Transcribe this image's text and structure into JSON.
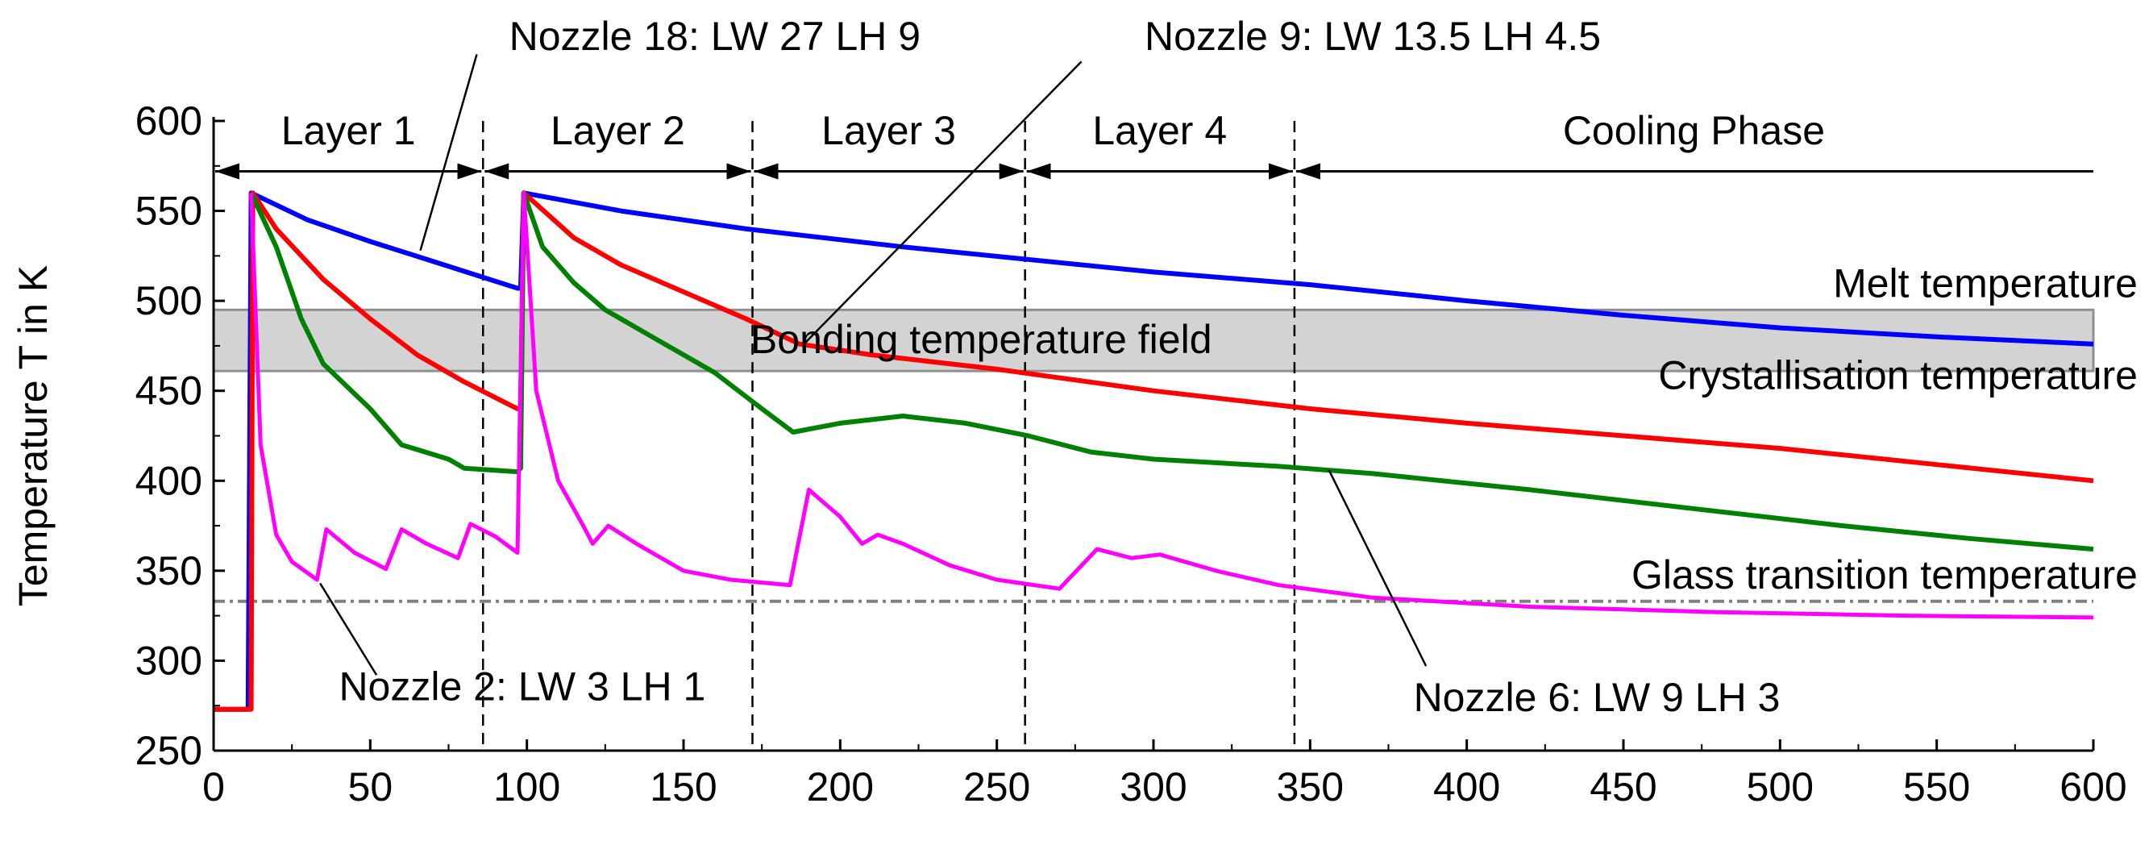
{
  "chart_data": {
    "type": "line",
    "title": "",
    "xlabel": "",
    "ylabel": "Temperature T in K",
    "xlim": [
      0,
      600
    ],
    "ylim": [
      250,
      600
    ],
    "xticks": [
      "0",
      "50",
      "100",
      "150",
      "200",
      "250",
      "300",
      "350",
      "400",
      "450",
      "500",
      "550",
      "600"
    ],
    "yticks": [
      "250",
      "300",
      "350",
      "400",
      "450",
      "500",
      "550",
      "600"
    ],
    "grid": false,
    "series": [
      {
        "name": "Nozzle 18: LW 27 LH 9",
        "color": "#0000ff",
        "x": [
          0,
          11,
          12,
          30,
          50,
          70,
          97,
          98,
          99,
          130,
          170,
          220,
          260,
          300,
          350,
          400,
          450,
          500,
          550,
          600
        ],
        "y": [
          273,
          273,
          560,
          545,
          533,
          522,
          507,
          507,
          560,
          550,
          540,
          530,
          523,
          516,
          509,
          500,
          492,
          485,
          480,
          476
        ]
      },
      {
        "name": "Nozzle 9: LW 13.5 LH 4.5",
        "color": "#ff0000",
        "x": [
          0,
          12,
          12.5,
          20,
          35,
          50,
          65,
          80,
          97,
          98,
          99,
          115,
          130,
          150,
          170,
          187,
          210,
          250,
          300,
          350,
          400,
          450,
          500,
          550,
          600
        ],
        "y": [
          273,
          273,
          560,
          540,
          512,
          490,
          470,
          455,
          440,
          440,
          560,
          535,
          520,
          505,
          490,
          476,
          470,
          462,
          450,
          440,
          432,
          425,
          418,
          409,
          400
        ]
      },
      {
        "name": "Nozzle 6: LW 9 LH 3",
        "color": "#008000",
        "x": [
          12,
          20,
          28,
          35,
          50,
          60,
          75,
          80,
          97,
          98,
          99,
          105,
          115,
          125,
          140,
          160,
          175,
          185,
          200,
          220,
          240,
          260,
          280,
          300,
          340,
          370,
          420,
          470,
          520,
          560,
          600
        ],
        "y": [
          560,
          530,
          490,
          465,
          440,
          420,
          412,
          407,
          405,
          407,
          560,
          530,
          510,
          495,
          480,
          460,
          440,
          427,
          432,
          436,
          432,
          425,
          416,
          412,
          408,
          404,
          395,
          385,
          375,
          368,
          362
        ]
      },
      {
        "name": "Nozzle 2: LW 3 LH 1",
        "color": "#ff00ff",
        "x": [
          12,
          15,
          20,
          25,
          33,
          36,
          45,
          55,
          60,
          68,
          78,
          82,
          90,
          97,
          99,
          103,
          110,
          118,
          121,
          126,
          135,
          150,
          165,
          184,
          190,
          200,
          207,
          212,
          220,
          235,
          250,
          270,
          282,
          293,
          302,
          320,
          340,
          370,
          420,
          480,
          540,
          600
        ],
        "y": [
          560,
          420,
          370,
          355,
          345,
          373,
          360,
          351,
          373,
          365,
          357,
          376,
          369,
          360,
          560,
          450,
          400,
          375,
          365,
          375,
          365,
          350,
          345,
          342,
          395,
          380,
          365,
          370,
          365,
          353,
          345,
          340,
          362,
          357,
          359,
          350,
          342,
          335,
          330,
          327,
          325,
          324
        ]
      }
    ],
    "reference_lines": {
      "glass_transition": {
        "label": "Glass transition temperature",
        "y": 333,
        "color": "#808080"
      },
      "bonding_field": {
        "label": "Bonding temperature field",
        "y_range": [
          461,
          495
        ],
        "color": "#d3d3d3"
      },
      "melt_label": "Melt temperature",
      "crystallisation_label": "Crystallisation temperature"
    },
    "phases": [
      {
        "label": "Layer 1",
        "start": 0,
        "end": 86
      },
      {
        "label": "Layer 2",
        "start": 86,
        "end": 172
      },
      {
        "label": "Layer 3",
        "start": 172,
        "end": 259
      },
      {
        "label": "Layer 4",
        "start": 259,
        "end": 345
      },
      {
        "label": "Cooling Phase",
        "start": 345,
        "end": 600
      }
    ]
  }
}
